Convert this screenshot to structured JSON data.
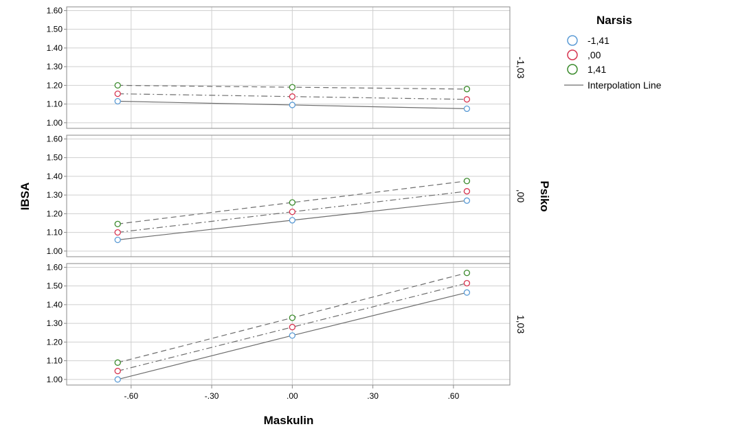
{
  "chart_data": {
    "type": "line",
    "xlabel": "Maskulin",
    "ylabel": "IBSA",
    "panel_variable": "Psiko",
    "legend_title": "Narsis",
    "interpolation_label": "Interpolation Line",
    "x_ticks": [
      -0.6,
      -0.3,
      0.0,
      0.3,
      0.6
    ],
    "x_tick_labels": [
      "-.60",
      "-.30",
      ".00",
      ".30",
      ".60"
    ],
    "xlim": [
      -0.84,
      0.81
    ],
    "x": [
      -0.65,
      0.0,
      0.65
    ],
    "grid": true,
    "legend_position": "top-right",
    "series_styles": [
      {
        "name": "-1,41",
        "color": "#5b9bd5",
        "dash": "none"
      },
      {
        "name": ",00",
        "color": "#d6334f",
        "dash": "dashdot"
      },
      {
        "name": "1,41",
        "color": "#3a8a2b",
        "dash": "dashed"
      }
    ],
    "panels": [
      {
        "label": "-1,03",
        "ylim": [
          0.97,
          1.62
        ],
        "y_ticks": [
          1.0,
          1.1,
          1.2,
          1.3,
          1.4,
          1.5,
          1.6
        ],
        "y_tick_labels": [
          "1.00",
          "1.10",
          "1.20",
          "1.30",
          "1.40",
          "1.50",
          "1.60"
        ],
        "series": [
          {
            "name": "-1,41",
            "values": [
              1.115,
              1.095,
              1.075
            ]
          },
          {
            "name": ",00",
            "values": [
              1.155,
              1.14,
              1.125
            ]
          },
          {
            "name": "1,41",
            "values": [
              1.2,
              1.19,
              1.18
            ]
          }
        ]
      },
      {
        "label": ",00",
        "ylim": [
          0.97,
          1.62
        ],
        "y_ticks": [
          1.0,
          1.1,
          1.2,
          1.3,
          1.4,
          1.5,
          1.6
        ],
        "y_tick_labels": [
          "1.00",
          "1.10",
          "1.20",
          "1.30",
          "1.40",
          "1.50",
          "1.60"
        ],
        "series": [
          {
            "name": "-1,41",
            "values": [
              1.06,
              1.165,
              1.27
            ]
          },
          {
            "name": ",00",
            "values": [
              1.1,
              1.21,
              1.32
            ]
          },
          {
            "name": "1,41",
            "values": [
              1.145,
              1.26,
              1.375
            ]
          }
        ]
      },
      {
        "label": "1,03",
        "ylim": [
          0.97,
          1.62
        ],
        "y_ticks": [
          1.0,
          1.1,
          1.2,
          1.3,
          1.4,
          1.5,
          1.6
        ],
        "y_tick_labels": [
          "1.00",
          "1.10",
          "1.20",
          "1.30",
          "1.40",
          "1.50",
          "1.60"
        ],
        "series": [
          {
            "name": "-1,41",
            "values": [
              1.0,
              1.235,
              1.465
            ]
          },
          {
            "name": ",00",
            "values": [
              1.045,
              1.28,
              1.515
            ]
          },
          {
            "name": "1,41",
            "values": [
              1.09,
              1.33,
              1.57
            ]
          }
        ]
      }
    ]
  }
}
